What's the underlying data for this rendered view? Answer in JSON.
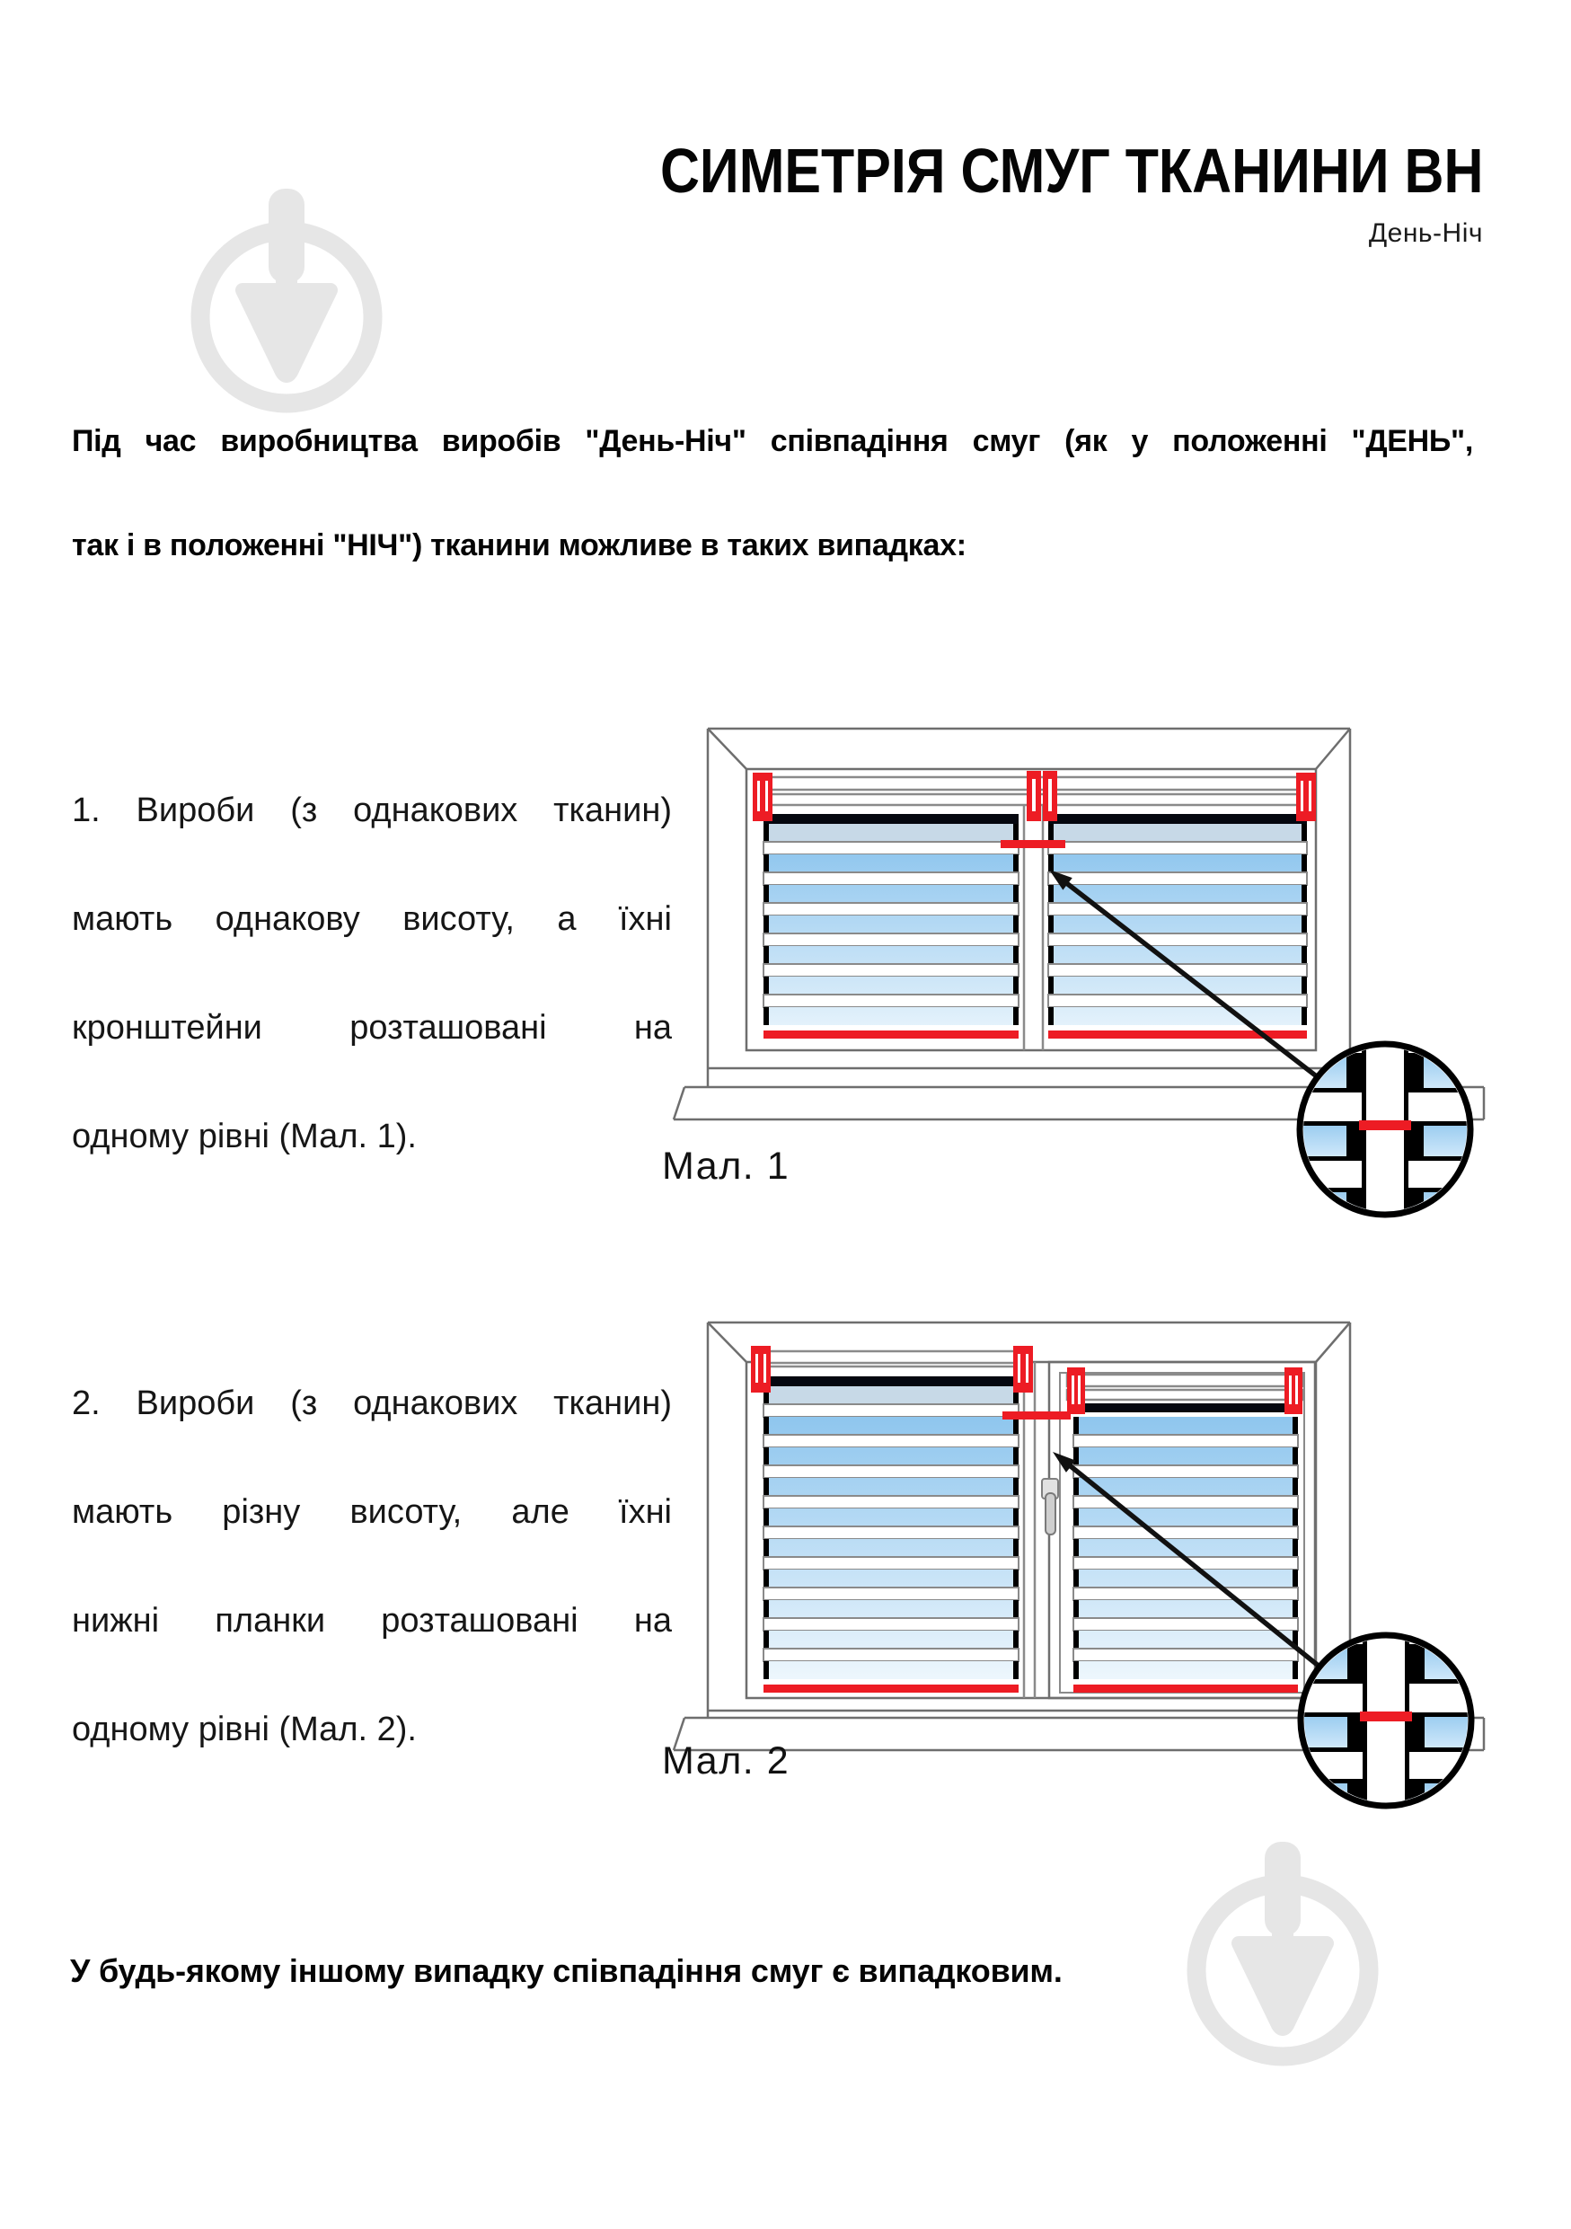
{
  "header": {
    "title": "СИМЕТРІЯ СМУГ ТКАНИНИ ВН",
    "subtitle": "День-Ніч"
  },
  "intro": {
    "lines": [
      "Під час виробництва виробів \"День-Ніч\" співпадіння смуг (як у положенні \"ДЕНЬ\",",
      "так і в положенні \"НІЧ\") тканини можливе в таких випадках:"
    ]
  },
  "items": [
    {
      "lines": [
        "1. Вироби (з однакових тканин)",
        "мають однакову висоту, а їхні",
        "кронштейни розташовані на",
        "одному рівні (Мал. 1)."
      ]
    },
    {
      "lines": [
        "2. Вироби (з однакових тканин)",
        "мають різну висоту, але їхні",
        "нижні планки розташовані на",
        "одному рівні (Мал. 2)."
      ]
    }
  ],
  "figures": [
    {
      "caption": "Мал. 1"
    },
    {
      "caption": "Мал. 2"
    }
  ],
  "note": "У будь-якому іншому випадку співпадіння смуг є випадковим.",
  "icons": {
    "watermark": "plumb-bob-brand-logo",
    "magnifier": "stripe-alignment-detail-circle"
  },
  "colors": {
    "accent_red": "#ed1c24",
    "stripe_blue_top": "#89c3ed",
    "stripe_blue_bottom": "#f4fafe",
    "pale_stripe": "#c7d9e7",
    "frame_gray": "#8a8a8a",
    "outline_gray": "#6e6e6e",
    "top_bar_black": "#05070f",
    "arrow_black": "#111111",
    "watermark_gray": "#e6e6e6"
  }
}
